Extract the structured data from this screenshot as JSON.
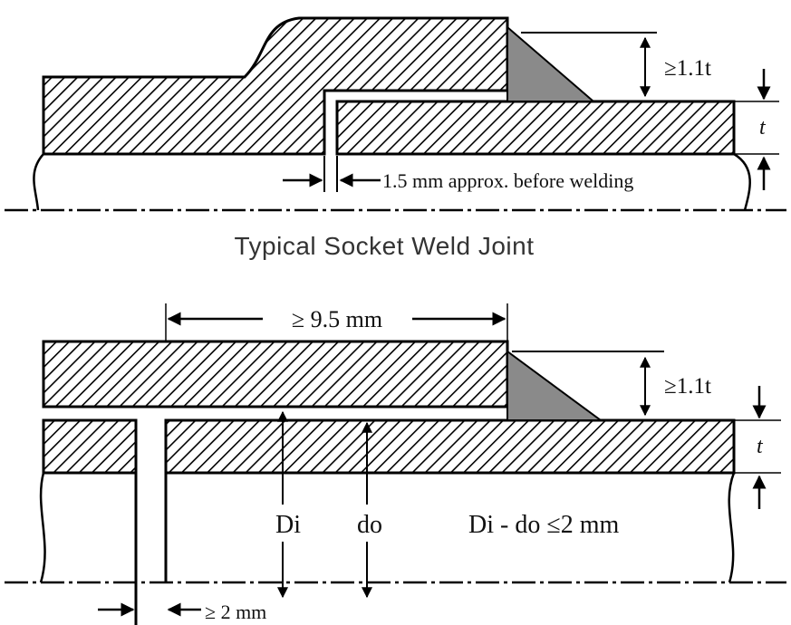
{
  "figure1": {
    "caption": "Typical Socket Weld Joint",
    "weld_size_label": "≥1.1t",
    "thickness_label": "t",
    "gap_label": "1.5 mm approx. before welding"
  },
  "figure2": {
    "engagement_label": "≥ 9.5 mm",
    "weld_size_label": "≥1.1t",
    "thickness_label": "t",
    "di_label": "Di",
    "do_label": "do",
    "clearance_label": "Di - do ≤2  mm",
    "gap_label": "≥ 2 mm"
  },
  "colors": {
    "line": "#000000",
    "weld_fill": "#8a8a8a",
    "background": "#ffffff"
  }
}
